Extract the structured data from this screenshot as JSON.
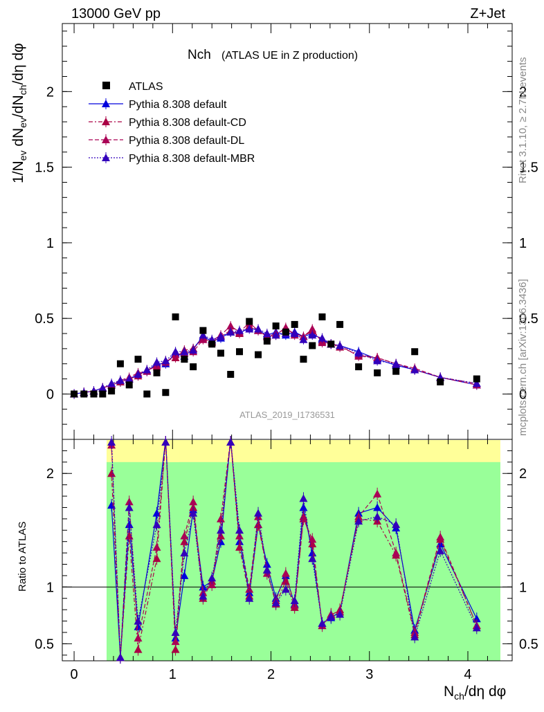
{
  "header": {
    "energy_label": "13000 GeV pp",
    "process_label": "Z+Jet"
  },
  "side_labels": {
    "rivet": "Rivet 3.1.10, ≥ 2.7M events",
    "source": "mcplots.cern.ch [arXiv:1306.3436]"
  },
  "watermark": "ATLAS_2019_I1736531",
  "colors": {
    "data": "#000000",
    "default": "#0000dd",
    "cd": "#aa0044",
    "dl": "#aa0055",
    "mbr": "#3300bb",
    "band_green": "#99ff99",
    "band_yellow": "#ffff99"
  },
  "chart_data": [
    {
      "type": "scatter",
      "title": "Nch",
      "subtitle": "(ATLAS UE in Z production)",
      "ylabel": "1/N_ev dN_ch/dN_ch/dη dφ",
      "xlim": [
        -0.12,
        4.45
      ],
      "ylim": [
        -0.3,
        2.45
      ],
      "yticks": [
        0,
        0.5,
        1,
        1.5,
        2
      ],
      "ytick_labels": [
        "0",
        "0.5",
        "1",
        "1.5",
        "2"
      ],
      "legend_position": "top-left",
      "legend": [
        "ATLAS",
        "Pythia 8.308 default",
        "Pythia 8.308 default-CD",
        "Pythia 8.308 default-DL",
        "Pythia 8.308 default-MBR"
      ],
      "x": [
        0.0,
        0.08,
        0.16,
        0.24,
        0.32,
        0.4,
        0.48,
        0.56,
        0.64,
        0.72,
        0.8,
        0.88,
        0.96,
        1.04,
        1.12,
        1.2,
        1.28,
        1.36,
        1.44,
        1.52,
        1.6,
        1.68,
        1.76,
        1.84,
        1.92,
        2.0,
        2.08,
        2.16,
        2.24,
        2.32,
        2.4,
        2.48,
        2.56,
        2.64,
        2.72,
        2.8,
        2.88,
        2.96,
        3.04,
        3.12,
        3.2,
        3.28,
        3.36,
        3.44,
        3.52,
        3.6,
        3.68,
        3.76,
        3.84,
        3.92,
        4.0,
        4.08,
        4.16
      ],
      "atlas": {
        "x": [
          0.0,
          0.1,
          0.2,
          0.29,
          0.38,
          0.47,
          0.56,
          0.65,
          0.74,
          0.84,
          0.93,
          1.03,
          1.12,
          1.21,
          1.31,
          1.4,
          1.49,
          1.59,
          1.68,
          1.78,
          1.87,
          1.96,
          2.05,
          2.15,
          2.24,
          2.33,
          2.42,
          2.52,
          2.61,
          2.7,
          2.89,
          3.08,
          3.27,
          3.46,
          3.72,
          4.09
        ],
        "y": [
          0.0,
          0.0,
          0.0,
          0.0,
          0.02,
          0.2,
          0.06,
          0.23,
          0.0,
          0.14,
          0.01,
          0.51,
          0.23,
          0.18,
          0.42,
          0.33,
          0.27,
          0.13,
          0.28,
          0.48,
          0.26,
          0.35,
          0.45,
          0.41,
          0.46,
          0.23,
          0.32,
          0.51,
          0.33,
          0.46,
          0.18,
          0.14,
          0.15,
          0.28,
          0.08,
          0.1
        ]
      },
      "series": [
        {
          "name": "Pythia 8.308 default",
          "x": [
            0.0,
            0.1,
            0.2,
            0.29,
            0.38,
            0.47,
            0.56,
            0.65,
            0.74,
            0.84,
            0.93,
            1.03,
            1.12,
            1.21,
            1.31,
            1.4,
            1.49,
            1.59,
            1.68,
            1.78,
            1.87,
            1.96,
            2.05,
            2.15,
            2.24,
            2.33,
            2.42,
            2.52,
            2.61,
            2.7,
            2.89,
            3.08,
            3.27,
            3.46,
            3.72,
            4.09
          ],
          "y": [
            0.0,
            0.01,
            0.02,
            0.04,
            0.06,
            0.08,
            0.1,
            0.13,
            0.15,
            0.2,
            0.2,
            0.27,
            0.25,
            0.3,
            0.38,
            0.35,
            0.37,
            0.41,
            0.4,
            0.44,
            0.42,
            0.39,
            0.41,
            0.39,
            0.41,
            0.38,
            0.4,
            0.36,
            0.33,
            0.32,
            0.28,
            0.23,
            0.19,
            0.16,
            0.11,
            0.06
          ]
        },
        {
          "name": "Pythia 8.308 default-CD",
          "x": [
            0.0,
            0.1,
            0.2,
            0.29,
            0.38,
            0.47,
            0.56,
            0.65,
            0.74,
            0.84,
            0.93,
            1.03,
            1.12,
            1.21,
            1.31,
            1.4,
            1.49,
            1.59,
            1.68,
            1.78,
            1.87,
            1.96,
            2.05,
            2.15,
            2.24,
            2.33,
            2.42,
            2.52,
            2.61,
            2.7,
            2.89,
            3.08,
            3.27,
            3.46,
            3.72,
            4.09
          ],
          "y": [
            0.0,
            0.01,
            0.02,
            0.04,
            0.06,
            0.08,
            0.1,
            0.12,
            0.16,
            0.18,
            0.22,
            0.24,
            0.29,
            0.3,
            0.37,
            0.34,
            0.38,
            0.42,
            0.4,
            0.45,
            0.42,
            0.38,
            0.4,
            0.43,
            0.4,
            0.38,
            0.42,
            0.35,
            0.33,
            0.31,
            0.26,
            0.24,
            0.2,
            0.16,
            0.11,
            0.07
          ]
        },
        {
          "name": "Pythia 8.308 default-DL",
          "x": [
            0.0,
            0.1,
            0.2,
            0.29,
            0.38,
            0.47,
            0.56,
            0.65,
            0.74,
            0.84,
            0.93,
            1.03,
            1.12,
            1.21,
            1.31,
            1.4,
            1.49,
            1.59,
            1.68,
            1.78,
            1.87,
            1.96,
            2.05,
            2.15,
            2.24,
            2.33,
            2.42,
            2.52,
            2.61,
            2.7,
            2.89,
            3.08,
            3.27,
            3.46,
            3.72,
            4.09
          ],
          "y": [
            0.0,
            0.01,
            0.02,
            0.04,
            0.06,
            0.09,
            0.11,
            0.14,
            0.15,
            0.19,
            0.21,
            0.26,
            0.27,
            0.28,
            0.36,
            0.35,
            0.39,
            0.45,
            0.41,
            0.47,
            0.42,
            0.38,
            0.39,
            0.44,
            0.39,
            0.38,
            0.43,
            0.34,
            0.33,
            0.32,
            0.25,
            0.24,
            0.2,
            0.17,
            0.11,
            0.06
          ]
        },
        {
          "name": "Pythia 8.308 default-MBR",
          "x": [
            0.0,
            0.1,
            0.2,
            0.29,
            0.38,
            0.47,
            0.56,
            0.65,
            0.74,
            0.84,
            0.93,
            1.03,
            1.12,
            1.21,
            1.31,
            1.4,
            1.49,
            1.59,
            1.68,
            1.78,
            1.87,
            1.96,
            2.05,
            2.15,
            2.24,
            2.33,
            2.42,
            2.52,
            2.61,
            2.7,
            2.89,
            3.08,
            3.27,
            3.46,
            3.72,
            4.09
          ],
          "y": [
            0.0,
            0.01,
            0.02,
            0.04,
            0.07,
            0.09,
            0.1,
            0.13,
            0.16,
            0.21,
            0.22,
            0.28,
            0.28,
            0.29,
            0.39,
            0.36,
            0.38,
            0.41,
            0.42,
            0.43,
            0.43,
            0.4,
            0.39,
            0.4,
            0.4,
            0.36,
            0.39,
            0.37,
            0.33,
            0.32,
            0.27,
            0.22,
            0.2,
            0.16,
            0.11,
            0.07
          ]
        }
      ]
    },
    {
      "type": "line",
      "ylabel": "Ratio to ATLAS",
      "xlabel": "N_ch/dη dφ",
      "xlim": [
        -0.12,
        4.45
      ],
      "ylim": [
        0.35,
        2.3
      ],
      "xticks": [
        0,
        1,
        2,
        3,
        4
      ],
      "xtick_labels": [
        "0",
        "1",
        "2",
        "3",
        "4"
      ],
      "yticks": [
        0.5,
        1,
        2
      ],
      "ytick_labels": [
        "0.5",
        "1",
        "2"
      ],
      "reference_line": 1,
      "band": {
        "x_start": 0.33,
        "x_end": 4.33,
        "green_range": [
          0.35,
          2.1
        ],
        "yellow_gaps": [
          [
            0.9,
            1.07
          ],
          [
            1.6,
            2.0
          ],
          [
            2.5,
            2.7
          ]
        ]
      },
      "series": [
        {
          "name": "Pythia 8.308 default",
          "x": [
            0.38,
            0.47,
            0.56,
            0.65,
            0.84,
            0.93,
            1.03,
            1.12,
            1.21,
            1.31,
            1.4,
            1.49,
            1.59,
            1.68,
            1.78,
            1.87,
            1.96,
            2.05,
            2.15,
            2.24,
            2.33,
            2.42,
            2.52,
            2.61,
            2.7,
            2.89,
            3.08,
            3.27,
            3.46,
            3.72,
            4.09
          ],
          "y": [
            1.72,
            0.38,
            1.55,
            0.65,
            1.65,
            2.3,
            0.55,
            1.1,
            1.68,
            1.0,
            1.05,
            1.4,
            2.3,
            1.4,
            0.95,
            1.55,
            1.2,
            0.9,
            1.1,
            0.85,
            1.7,
            1.3,
            0.68,
            0.73,
            0.78,
            1.65,
            1.7,
            1.52,
            0.62,
            1.38,
            0.72
          ]
        },
        {
          "name": "Pythia 8.308 default-CD",
          "x": [
            0.38,
            0.47,
            0.56,
            0.65,
            0.84,
            0.93,
            1.03,
            1.12,
            1.21,
            1.31,
            1.4,
            1.49,
            1.59,
            1.68,
            1.78,
            1.87,
            1.96,
            2.05,
            2.15,
            2.24,
            2.33,
            2.42,
            2.52,
            2.61,
            2.7,
            2.89,
            3.08,
            3.27,
            3.46,
            3.72,
            4.09
          ],
          "y": [
            2.0,
            0.38,
            1.45,
            0.45,
            1.25,
            2.3,
            0.45,
            1.4,
            1.7,
            0.9,
            1.05,
            1.45,
            2.3,
            1.35,
            0.92,
            1.55,
            1.15,
            0.85,
            1.05,
            0.82,
            1.62,
            1.38,
            0.66,
            0.75,
            0.8,
            1.6,
            1.58,
            1.28,
            0.58,
            1.42,
            0.66
          ]
        },
        {
          "name": "Pythia 8.308 default-DL",
          "x": [
            0.38,
            0.47,
            0.56,
            0.65,
            0.84,
            0.93,
            1.03,
            1.12,
            1.21,
            1.31,
            1.4,
            1.49,
            1.59,
            1.68,
            1.78,
            1.87,
            1.96,
            2.05,
            2.15,
            2.24,
            2.33,
            2.42,
            2.52,
            2.61,
            2.7,
            2.89,
            3.08,
            3.27,
            3.46,
            3.72,
            4.09
          ],
          "y": [
            2.25,
            0.38,
            1.75,
            0.55,
            1.35,
            2.3,
            0.52,
            1.45,
            1.75,
            0.95,
            1.02,
            1.6,
            2.3,
            1.45,
            0.98,
            1.62,
            1.12,
            0.88,
            1.12,
            0.84,
            1.6,
            1.42,
            0.66,
            0.76,
            0.78,
            1.62,
            1.82,
            1.3,
            0.6,
            1.44,
            0.66
          ]
        },
        {
          "name": "Pythia 8.308 default-MBR",
          "x": [
            0.38,
            0.47,
            0.56,
            0.65,
            0.84,
            0.93,
            1.03,
            1.12,
            1.21,
            1.31,
            1.4,
            1.49,
            1.59,
            1.68,
            1.78,
            1.87,
            1.96,
            2.05,
            2.15,
            2.24,
            2.33,
            2.42,
            2.52,
            2.61,
            2.7,
            2.89,
            3.08,
            3.27,
            3.46,
            3.72,
            4.09
          ],
          "y": [
            2.3,
            0.38,
            1.7,
            0.7,
            1.55,
            2.3,
            0.6,
            1.3,
            1.65,
            0.92,
            1.08,
            1.5,
            2.3,
            1.5,
            0.9,
            1.65,
            1.15,
            0.86,
            0.98,
            0.88,
            1.78,
            1.25,
            0.68,
            0.74,
            0.76,
            1.58,
            1.62,
            1.55,
            0.56,
            1.32,
            0.64
          ]
        }
      ]
    }
  ]
}
